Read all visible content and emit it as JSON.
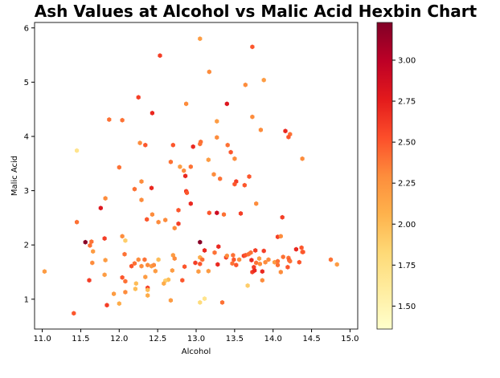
{
  "chart_data": {
    "type": "scatter",
    "title": "Ash Values at Alcohol vs Malic Acid Hexbin Chart",
    "xlabel": "Alcohol",
    "ylabel": "Malic Acid",
    "xlim": [
      10.9,
      15.1
    ],
    "ylim": [
      0.45,
      6.1
    ],
    "xticks": [
      "11.0",
      "11.5",
      "12.0",
      "12.5",
      "13.0",
      "13.5",
      "14.0",
      "14.5",
      "15.0"
    ],
    "yticks": [
      "1",
      "2",
      "3",
      "4",
      "5",
      "6"
    ],
    "colorbar": {
      "colormap": "YlOrRd",
      "range": [
        1.36,
        3.23
      ],
      "ticks": [
        "1.50",
        "1.75",
        "2.00",
        "2.25",
        "2.50",
        "2.75",
        "3.00"
      ]
    },
    "grid": false,
    "points": [
      [
        13.05,
        5.8,
        2.2
      ],
      [
        13.73,
        5.65,
        2.5
      ],
      [
        12.53,
        5.49,
        2.6
      ],
      [
        13.17,
        5.19,
        2.3
      ],
      [
        13.88,
        5.04,
        2.2
      ],
      [
        13.64,
        4.95,
        2.3
      ],
      [
        12.25,
        4.72,
        2.6
      ],
      [
        12.87,
        4.6,
        2.3
      ],
      [
        13.4,
        4.6,
        2.8
      ],
      [
        12.43,
        4.43,
        2.7
      ],
      [
        13.73,
        4.36,
        2.3
      ],
      [
        11.87,
        4.31,
        2.4
      ],
      [
        12.04,
        4.3,
        2.4
      ],
      [
        13.27,
        4.28,
        2.2
      ],
      [
        14.16,
        4.1,
        2.7
      ],
      [
        13.84,
        4.12,
        2.3
      ],
      [
        14.22,
        4.04,
        2.4
      ],
      [
        14.2,
        3.99,
        2.5
      ],
      [
        13.27,
        3.98,
        2.3
      ],
      [
        12.27,
        3.88,
        2.3
      ],
      [
        12.7,
        3.84,
        2.5
      ],
      [
        12.34,
        3.84,
        2.5
      ],
      [
        13.06,
        3.9,
        2.4
      ],
      [
        13.05,
        3.86,
        2.4
      ],
      [
        12.96,
        3.81,
        2.7
      ],
      [
        13.41,
        3.84,
        2.4
      ],
      [
        13.45,
        3.71,
        2.5
      ],
      [
        11.45,
        3.74,
        1.7
      ],
      [
        13.16,
        3.57,
        2.2
      ],
      [
        13.5,
        3.59,
        2.3
      ],
      [
        14.38,
        3.59,
        2.3
      ],
      [
        12.67,
        3.53,
        2.4
      ],
      [
        12.79,
        3.44,
        2.2
      ],
      [
        12.93,
        3.44,
        2.4
      ],
      [
        13.52,
        3.17,
        2.6
      ],
      [
        13.5,
        3.12,
        2.5
      ],
      [
        13.63,
        3.1,
        2.5
      ],
      [
        12.84,
        3.37,
        2.3
      ],
      [
        12.86,
        3.27,
        2.7
      ],
      [
        12.0,
        3.43,
        2.4
      ],
      [
        13.23,
        3.3,
        2.3
      ],
      [
        13.69,
        3.26,
        2.5
      ],
      [
        13.31,
        3.22,
        2.4
      ],
      [
        12.29,
        3.17,
        2.3
      ],
      [
        12.2,
        3.03,
        2.4
      ],
      [
        12.42,
        3.05,
        2.7
      ],
      [
        12.87,
        2.99,
        2.6
      ],
      [
        12.88,
        2.96,
        2.5
      ],
      [
        11.82,
        2.86,
        2.3
      ],
      [
        12.29,
        2.83,
        2.3
      ],
      [
        12.93,
        2.76,
        2.7
      ],
      [
        13.78,
        2.76,
        2.3
      ],
      [
        12.77,
        2.64,
        2.5
      ],
      [
        11.76,
        2.68,
        2.8
      ],
      [
        13.17,
        2.59,
        2.5
      ],
      [
        13.27,
        2.59,
        2.9
      ],
      [
        13.36,
        2.56,
        2.4
      ],
      [
        13.58,
        2.58,
        2.6
      ],
      [
        14.12,
        2.51,
        2.6
      ],
      [
        12.36,
        2.47,
        2.5
      ],
      [
        12.6,
        2.46,
        2.3
      ],
      [
        12.51,
        2.42,
        2.3
      ],
      [
        12.77,
        2.39,
        2.6
      ],
      [
        11.45,
        2.42,
        2.4
      ],
      [
        12.43,
        2.56,
        2.3
      ],
      [
        12.72,
        2.31,
        2.3
      ],
      [
        11.56,
        2.05,
        3.2
      ],
      [
        13.05,
        2.05,
        3.2
      ],
      [
        11.64,
        2.06,
        2.4
      ],
      [
        11.62,
        1.99,
        2.4
      ],
      [
        11.66,
        1.88,
        2.2
      ],
      [
        11.81,
        2.12,
        2.6
      ],
      [
        12.04,
        2.16,
        2.3
      ],
      [
        12.08,
        2.08,
        1.9
      ],
      [
        12.07,
        1.83,
        2.4
      ],
      [
        11.82,
        1.72,
        2.2
      ],
      [
        11.65,
        1.67,
        2.3
      ],
      [
        11.61,
        1.35,
        2.6
      ],
      [
        11.81,
        1.45,
        2.2
      ],
      [
        11.84,
        0.89,
        2.6
      ],
      [
        11.41,
        0.74,
        2.5
      ],
      [
        11.03,
        1.51,
        2.2
      ],
      [
        11.93,
        1.1,
        2.2
      ],
      [
        12.0,
        0.92,
        2.1
      ],
      [
        12.08,
        1.13,
        2.3
      ],
      [
        12.08,
        1.33,
        2.4
      ],
      [
        12.04,
        1.4,
        2.5
      ],
      [
        12.16,
        1.61,
        2.5
      ],
      [
        12.2,
        1.66,
        2.4
      ],
      [
        12.22,
        1.29,
        2.0
      ],
      [
        12.21,
        1.19,
        2.0
      ],
      [
        12.29,
        1.61,
        2.3
      ],
      [
        12.33,
        1.73,
        2.4
      ],
      [
        12.34,
        1.41,
        2.2
      ],
      [
        12.37,
        1.07,
        2.1
      ],
      [
        12.37,
        1.21,
        2.6
      ],
      [
        12.37,
        1.63,
        2.3
      ],
      [
        12.42,
        1.61,
        2.2
      ],
      [
        12.45,
        1.63,
        2.3
      ],
      [
        12.47,
        1.52,
        2.2
      ],
      [
        12.51,
        1.73,
        2.0
      ],
      [
        12.37,
        1.17,
        2.0
      ],
      [
        12.25,
        1.73,
        2.3
      ],
      [
        12.64,
        1.36,
        2.0
      ],
      [
        12.6,
        1.34,
        1.9
      ],
      [
        12.58,
        1.29,
        2.1
      ],
      [
        12.69,
        1.53,
        2.2
      ],
      [
        12.67,
        0.98,
        2.2
      ],
      [
        12.7,
        1.81,
        2.2
      ],
      [
        12.72,
        1.75,
        2.3
      ],
      [
        12.82,
        1.35,
        2.5
      ],
      [
        12.85,
        1.6,
        2.5
      ],
      [
        12.99,
        1.67,
        2.6
      ],
      [
        13.05,
        1.77,
        2.1
      ],
      [
        13.03,
        1.51,
        2.2
      ],
      [
        13.05,
        1.65,
        2.5
      ],
      [
        13.08,
        1.73,
        2.4
      ],
      [
        13.05,
        0.94,
        1.8
      ],
      [
        13.11,
        1.01,
        1.7
      ],
      [
        13.11,
        1.9,
        2.7
      ],
      [
        13.16,
        1.52,
        2.2
      ],
      [
        13.24,
        1.86,
        2.4
      ],
      [
        13.28,
        1.64,
        2.7
      ],
      [
        13.29,
        1.97,
        2.7
      ],
      [
        13.34,
        0.94,
        2.4
      ],
      [
        13.39,
        1.77,
        2.6
      ],
      [
        13.4,
        1.8,
        2.3
      ],
      [
        13.47,
        1.66,
        2.4
      ],
      [
        13.48,
        1.81,
        2.4
      ],
      [
        13.49,
        1.73,
        2.5
      ],
      [
        13.52,
        1.63,
        2.5
      ],
      [
        13.56,
        1.73,
        2.3
      ],
      [
        13.62,
        1.8,
        2.6
      ],
      [
        13.64,
        1.81,
        2.5
      ],
      [
        13.68,
        1.83,
        2.4
      ],
      [
        13.67,
        1.25,
        1.9
      ],
      [
        13.71,
        1.86,
        2.4
      ],
      [
        13.72,
        1.72,
        2.7
      ],
      [
        13.73,
        1.5,
        2.6
      ],
      [
        13.75,
        1.59,
        2.6
      ],
      [
        13.76,
        1.53,
        2.7
      ],
      [
        13.77,
        1.9,
        2.6
      ],
      [
        13.78,
        1.67,
        2.4
      ],
      [
        13.82,
        1.75,
        2.2
      ],
      [
        13.83,
        1.65,
        2.3
      ],
      [
        13.86,
        1.51,
        2.7
      ],
      [
        13.86,
        1.35,
        2.3
      ],
      [
        13.88,
        1.89,
        2.6
      ],
      [
        13.9,
        1.68,
        2.3
      ],
      [
        13.94,
        1.73,
        2.3
      ],
      [
        14.02,
        1.68,
        2.2
      ],
      [
        14.06,
        1.7,
        2.4
      ],
      [
        14.06,
        2.15,
        2.6
      ],
      [
        14.1,
        2.16,
        2.3
      ],
      [
        14.1,
        1.5,
        2.3
      ],
      [
        14.13,
        1.78,
        2.4
      ],
      [
        14.19,
        1.59,
        2.5
      ],
      [
        14.2,
        1.76,
        2.4
      ],
      [
        14.21,
        1.72,
        2.5
      ],
      [
        14.22,
        1.7,
        2.4
      ],
      [
        14.3,
        1.92,
        2.7
      ],
      [
        14.34,
        1.68,
        2.5
      ],
      [
        14.37,
        1.95,
        2.5
      ],
      [
        14.38,
        1.87,
        2.4
      ],
      [
        14.39,
        1.87,
        2.5
      ],
      [
        14.75,
        1.73,
        2.4
      ],
      [
        14.83,
        1.64,
        2.2
      ],
      [
        14.06,
        1.63,
        2.4
      ]
    ]
  }
}
